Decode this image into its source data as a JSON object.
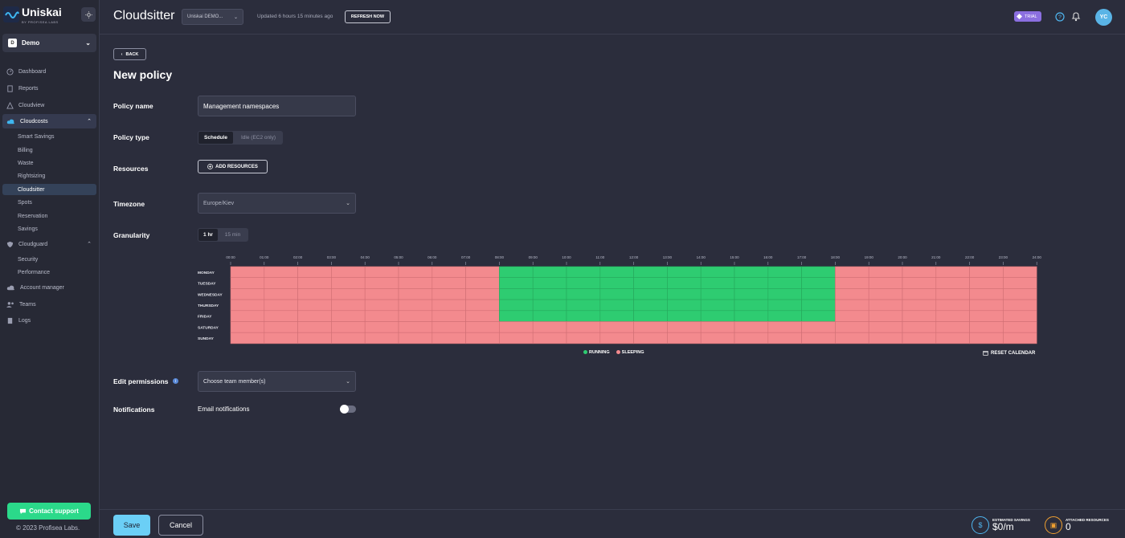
{
  "brand": {
    "name": "Uniskai",
    "sub": "BY PROFISEA LABS"
  },
  "org": {
    "badge": "D",
    "name": "Demo"
  },
  "nav": {
    "dashboard": "Dashboard",
    "reports": "Reports",
    "cloudview": "Cloudview",
    "cloudcosts": "Cloudcosts",
    "cloudcosts_children": [
      "Smart Savings",
      "Billing",
      "Waste",
      "Rightsizing",
      "Cloudsitter",
      "Spots",
      "Reservation",
      "Savings"
    ],
    "cloudguard": "Cloudguard",
    "cloudguard_children": [
      "Security",
      "Performance"
    ],
    "account_manager": "Account manager",
    "teams": "Teams",
    "logs": "Logs"
  },
  "contact_support": "Contact support",
  "copyright": "© 2023 Profisea Labs.",
  "topbar": {
    "title": "Cloudsitter",
    "account": "Uniskai DEMO...",
    "updated": "Updated 6 hours 15 minutes ago",
    "refresh": "REFRESH NOW",
    "trial": "TRIAL",
    "avatar": "YC"
  },
  "page": {
    "back": "BACK",
    "title": "New policy"
  },
  "form": {
    "policy_name_label": "Policy name",
    "policy_name_value": "Management namespaces",
    "policy_type_label": "Policy type",
    "policy_type_options": [
      "Schedule",
      "Idle (EC2 only)"
    ],
    "resources_label": "Resources",
    "add_resources": "ADD RESOURCES",
    "timezone_label": "Timezone",
    "timezone_value": "Europe/Kiev",
    "granularity_label": "Granularity",
    "granularity_options": [
      "1 hr",
      "15 min"
    ],
    "edit_permissions_label": "Edit permissions",
    "team_placeholder": "Choose team member(s)",
    "notifications_label": "Notifications",
    "email_notifications": "Email notifications",
    "email_notifications_on": false
  },
  "calendar": {
    "hours": [
      "00:00",
      "01:00",
      "02:00",
      "03:00",
      "04:00",
      "05:00",
      "06:00",
      "07:00",
      "08:00",
      "09:00",
      "10:00",
      "11:00",
      "12:00",
      "13:00",
      "14:00",
      "15:00",
      "16:00",
      "17:00",
      "18:00",
      "19:00",
      "20:00",
      "21:00",
      "22:00",
      "23:00",
      "24:00"
    ],
    "days": [
      "MONDAY",
      "TUESDAY",
      "WEDNESDAY",
      "THURSDAY",
      "FRIDAY",
      "SATURDAY",
      "SUNDAY"
    ],
    "running_days": [
      "MONDAY",
      "TUESDAY",
      "WEDNESDAY",
      "THURSDAY",
      "FRIDAY"
    ],
    "running_hours": [
      8,
      18
    ],
    "legend_running": "RUNNING",
    "legend_sleeping": "SLEEPING",
    "reset": "RESET CALENDAR",
    "colors": {
      "running": "#2ecc71",
      "sleeping": "#f38a8e"
    }
  },
  "footer": {
    "save": "Save",
    "cancel": "Cancel",
    "estimated_savings_label": "ESTIMATED SAVINGS",
    "estimated_savings_value": "$0/m",
    "attached_resources_label": "ATTACHED RESOURCES",
    "attached_resources_value": "0"
  }
}
